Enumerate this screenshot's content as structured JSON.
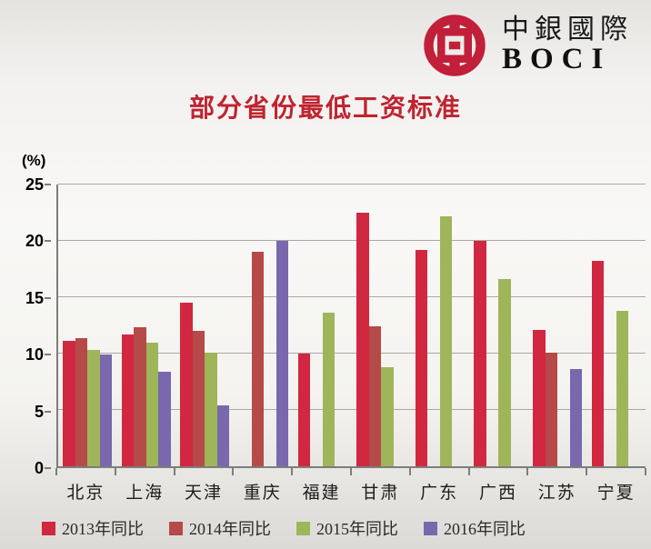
{
  "logo": {
    "name_cn": "中銀國際",
    "name_en": "BOCI",
    "emblem": "bank-of-china-coin-emblem",
    "brand_color": "#c21f3a"
  },
  "title": "部分省份最低工资标准",
  "chart_data": {
    "type": "bar",
    "title": "部分省份最低工资标准",
    "unit_label": "(%)",
    "xlabel": "",
    "ylabel": "(%)",
    "ylim": [
      0,
      25
    ],
    "yticks": [
      0,
      5,
      10,
      15,
      20,
      25
    ],
    "grid": true,
    "legend_position": "bottom",
    "categories": [
      "北京",
      "上海",
      "天津",
      "重庆",
      "福建",
      "甘肃",
      "广东",
      "广西",
      "江苏",
      "宁夏"
    ],
    "series": [
      {
        "name": "2013年同比",
        "color": "#d22741",
        "values": [
          11.1,
          11.7,
          14.5,
          null,
          10.0,
          22.5,
          19.2,
          20.0,
          12.1,
          18.2
        ]
      },
      {
        "name": "2014年同比",
        "color": "#b54a49",
        "values": [
          11.4,
          12.3,
          12.0,
          19.0,
          null,
          12.4,
          null,
          null,
          10.1,
          null
        ]
      },
      {
        "name": "2015年同比",
        "color": "#9fb55a",
        "values": [
          10.3,
          11.0,
          10.1,
          null,
          13.6,
          8.8,
          22.2,
          16.6,
          null,
          13.8
        ]
      },
      {
        "name": "2016年同比",
        "color": "#7968ad",
        "values": [
          9.9,
          8.4,
          5.4,
          20.0,
          null,
          null,
          null,
          null,
          8.6,
          null
        ]
      }
    ],
    "axis_color": "#7d7d7b",
    "gridline_color": "#aaa8a5"
  }
}
